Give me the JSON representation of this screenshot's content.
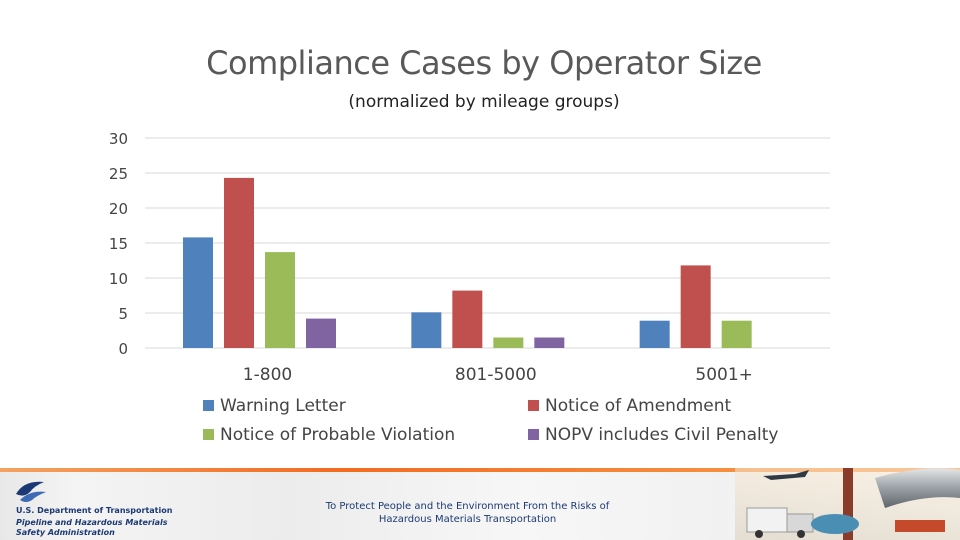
{
  "chart_data": {
    "type": "bar",
    "title": "Compliance Cases by Operator Size",
    "subtitle": "(normalized by mileage groups)",
    "categories": [
      "1-800",
      "801-5000",
      "5001+"
    ],
    "series": [
      {
        "name": "Warning Letter",
        "color": "#4f81bd",
        "values": [
          15.8,
          5.1,
          3.9
        ]
      },
      {
        "name": "Notice of Amendment",
        "color": "#c0504d",
        "values": [
          24.3,
          8.2,
          11.8
        ]
      },
      {
        "name": "Notice of Probable Violation",
        "color": "#9bbb59",
        "values": [
          13.7,
          1.5,
          3.9
        ]
      },
      {
        "name": "NOPV includes Civil Penalty",
        "color": "#8064a2",
        "values": [
          4.2,
          1.5,
          0
        ]
      }
    ],
    "yticks": [
      0,
      5,
      10,
      15,
      20,
      25,
      30
    ],
    "ylim": [
      0,
      30
    ],
    "grid": true,
    "legend_position": "bottom"
  },
  "footer": {
    "agency_line1": "U.S. Department of Transportation",
    "agency_line2": "Pipeline and Hazardous Materials",
    "agency_line3": "Safety Administration",
    "tagline": "To Protect People and the Environment From the Risks of Hazardous Materials Transportation"
  },
  "colors": {
    "accent_orange": "#f26b21",
    "navy": "#1b3a73",
    "grid": "#d9d9d9"
  }
}
